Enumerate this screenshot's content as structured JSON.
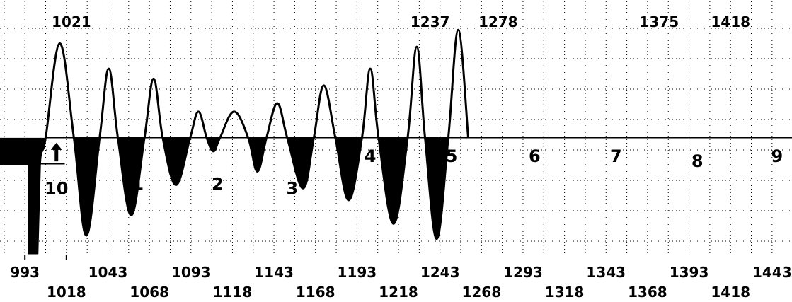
{
  "chart_data": {
    "type": "area",
    "title": "",
    "xlabel": "",
    "ylabel": "",
    "baseline": 0,
    "xlim": [
      978,
      1455
    ],
    "ylim": [
      -1.37,
      1.4
    ],
    "grid": true,
    "series": [
      {
        "points": [
          {
            "x": 978,
            "y": -0.31
          },
          {
            "x": 995.5,
            "y": -0.31
          },
          {
            "x": 995.5,
            "y": -1.37
          },
          {
            "x": 1000.5,
            "y": -1.37
          },
          {
            "x": 1002,
            "y": -0.31
          },
          {
            "x": 1005.5,
            "y": 0
          },
          {
            "x": 1014,
            "y": 1.12
          },
          {
            "x": 1022.5,
            "y": 0
          },
          {
            "x": 1030,
            "y": -1.16
          },
          {
            "x": 1038,
            "y": 0
          },
          {
            "x": 1043.5,
            "y": 0.82
          },
          {
            "x": 1049,
            "y": 0
          },
          {
            "x": 1057,
            "y": -0.92
          },
          {
            "x": 1065,
            "y": 0
          },
          {
            "x": 1070.5,
            "y": 0.7
          },
          {
            "x": 1076,
            "y": 0
          },
          {
            "x": 1084,
            "y": -0.56
          },
          {
            "x": 1092.5,
            "y": 0
          },
          {
            "x": 1097.5,
            "y": 0.31
          },
          {
            "x": 1102.5,
            "y": 0
          },
          {
            "x": 1106.5,
            "y": -0.16
          },
          {
            "x": 1110.5,
            "y": 0
          },
          {
            "x": 1119,
            "y": 0.31
          },
          {
            "x": 1127.5,
            "y": 0
          },
          {
            "x": 1133,
            "y": -0.4
          },
          {
            "x": 1138.5,
            "y": 0
          },
          {
            "x": 1145,
            "y": 0.41
          },
          {
            "x": 1151,
            "y": 0
          },
          {
            "x": 1160.5,
            "y": -0.6
          },
          {
            "x": 1167,
            "y": 0
          },
          {
            "x": 1173,
            "y": 0.62
          },
          {
            "x": 1180,
            "y": 0
          },
          {
            "x": 1188,
            "y": -0.74
          },
          {
            "x": 1196,
            "y": 0
          },
          {
            "x": 1201,
            "y": 0.82
          },
          {
            "x": 1206,
            "y": 0
          },
          {
            "x": 1215,
            "y": -1.02
          },
          {
            "x": 1223.5,
            "y": 0
          },
          {
            "x": 1229,
            "y": 1.08
          },
          {
            "x": 1234,
            "y": 0
          },
          {
            "x": 1241,
            "y": -1.2
          },
          {
            "x": 1248,
            "y": 0
          },
          {
            "x": 1254,
            "y": 1.28
          },
          {
            "x": 1260,
            "y": 0
          }
        ]
      }
    ],
    "x_ticks": [
      {
        "value": 993,
        "label": "993",
        "row": 1
      },
      {
        "value": 1018,
        "label": "1018",
        "row": 2
      },
      {
        "value": 1043,
        "label": "1043",
        "row": 1
      },
      {
        "value": 1068,
        "label": "1068",
        "row": 2
      },
      {
        "value": 1093,
        "label": "1093",
        "row": 1
      },
      {
        "value": 1118,
        "label": "1118",
        "row": 2
      },
      {
        "value": 1143,
        "label": "1143",
        "row": 1
      },
      {
        "value": 1168,
        "label": "1168",
        "row": 2
      },
      {
        "value": 1193,
        "label": "1193",
        "row": 1
      },
      {
        "value": 1218,
        "label": "1218",
        "row": 2
      },
      {
        "value": 1243,
        "label": "1243",
        "row": 1
      },
      {
        "value": 1268,
        "label": "1268",
        "row": 2
      },
      {
        "value": 1293,
        "label": "1293",
        "row": 1
      },
      {
        "value": 1318,
        "label": "1318",
        "row": 2
      },
      {
        "value": 1343,
        "label": "1343",
        "row": 1
      },
      {
        "value": 1368,
        "label": "1368",
        "row": 2
      },
      {
        "value": 1393,
        "label": "1393",
        "row": 1
      },
      {
        "value": 1418,
        "label": "1418",
        "row": 2
      },
      {
        "value": 1443,
        "label": "1443",
        "row": 1
      }
    ],
    "peak_labels": [
      {
        "x": 1021,
        "label": "1021"
      },
      {
        "x": 1237,
        "label": "1237"
      },
      {
        "x": 1278,
        "label": "1278"
      },
      {
        "x": 1375,
        "label": "1375"
      },
      {
        "x": 1418,
        "label": "1418"
      }
    ],
    "cycle_labels": [
      {
        "x": 1012,
        "y": -0.6,
        "label": "10"
      },
      {
        "x": 1061,
        "y": -0.55,
        "label": "1"
      },
      {
        "x": 1109,
        "y": -0.55,
        "label": "2"
      },
      {
        "x": 1154,
        "y": -0.6,
        "label": "3"
      },
      {
        "x": 1201,
        "y": -0.22,
        "label": "4"
      },
      {
        "x": 1250,
        "y": -0.22,
        "label": "5"
      },
      {
        "x": 1300,
        "y": -0.22,
        "label": "6"
      },
      {
        "x": 1349,
        "y": -0.22,
        "label": "7"
      },
      {
        "x": 1398,
        "y": -0.28,
        "label": "8"
      },
      {
        "x": 1446,
        "y": -0.22,
        "label": "9"
      }
    ],
    "arrow_marker": {
      "x": 1012,
      "y_from": -0.28,
      "y_to": -0.06
    }
  }
}
